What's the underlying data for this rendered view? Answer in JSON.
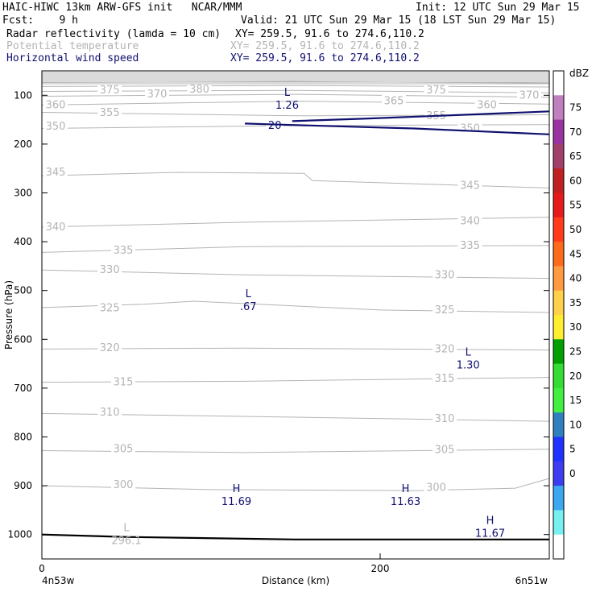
{
  "header": {
    "title_left": "HAIC-HIWC 13km ARW-GFS init   NCAR/MMM",
    "init": "Init: 12 UTC Sun 29 Mar 15",
    "fcst": "Fcst:    9 h",
    "valid": "Valid: 21 UTC Sun 29 Mar 15 (18 LST Sun 29 Mar 15)",
    "fields": [
      {
        "name": "Radar reflectivity (lamda = 10 cm)",
        "xy": "XY= 259.5, 91.6 to 274.6,110.2",
        "color": "#000000"
      },
      {
        "name": "Potential temperature",
        "xy": "XY= 259.5, 91.6 to 274.6,110.2",
        "color": "#b4b4b4"
      },
      {
        "name": "Horizontal wind speed",
        "xy": "XY= 259.5, 91.6 to 274.6,110.2",
        "color": "#101070"
      }
    ]
  },
  "chart_data": {
    "type": "line",
    "title": "",
    "xlabel": "Distance (km)",
    "ylabel": "Pressure (hPa)",
    "xlim": [
      0,
      300
    ],
    "ylim": [
      1050,
      50
    ],
    "xticks": [
      0,
      200
    ],
    "yticks": [
      100,
      200,
      300,
      400,
      500,
      600,
      700,
      800,
      900,
      1000
    ],
    "endpoints": {
      "left": "4n53w",
      "right": "6n51w"
    },
    "theta_contours": [
      {
        "level": 300,
        "points": [
          [
            0,
            900
          ],
          [
            100,
            908
          ],
          [
            220,
            910
          ],
          [
            280,
            905
          ],
          [
            300,
            885
          ]
        ],
        "labels": [
          [
            40,
            898
          ],
          [
            225,
            904
          ]
        ]
      },
      {
        "level": 305,
        "points": [
          [
            0,
            828
          ],
          [
            120,
            832
          ],
          [
            300,
            825
          ]
        ],
        "labels": [
          [
            40,
            825
          ],
          [
            230,
            826
          ]
        ]
      },
      {
        "level": 310,
        "points": [
          [
            0,
            752
          ],
          [
            120,
            758
          ],
          [
            300,
            768
          ]
        ],
        "labels": [
          [
            32,
            750
          ],
          [
            230,
            763
          ]
        ]
      },
      {
        "level": 315,
        "points": [
          [
            0,
            688
          ],
          [
            120,
            686
          ],
          [
            300,
            678
          ]
        ],
        "labels": [
          [
            40,
            688
          ],
          [
            230,
            680
          ]
        ]
      },
      {
        "level": 320,
        "points": [
          [
            0,
            620
          ],
          [
            120,
            618
          ],
          [
            300,
            622
          ]
        ],
        "labels": [
          [
            32,
            618
          ],
          [
            230,
            620
          ]
        ]
      },
      {
        "level": 325,
        "points": [
          [
            0,
            535
          ],
          [
            60,
            528
          ],
          [
            90,
            522
          ],
          [
            140,
            530
          ],
          [
            200,
            540
          ],
          [
            300,
            545
          ]
        ],
        "labels": [
          [
            32,
            536
          ],
          [
            230,
            540
          ]
        ]
      },
      {
        "level": 330,
        "points": [
          [
            0,
            458
          ],
          [
            120,
            468
          ],
          [
            300,
            475
          ]
        ],
        "labels": [
          [
            32,
            458
          ],
          [
            230,
            468
          ]
        ]
      },
      {
        "level": 335,
        "points": [
          [
            0,
            422
          ],
          [
            120,
            410
          ],
          [
            300,
            408
          ]
        ],
        "labels": [
          [
            40,
            418
          ],
          [
            245,
            408
          ]
        ]
      },
      {
        "level": 340,
        "points": [
          [
            0,
            370
          ],
          [
            120,
            360
          ],
          [
            300,
            350
          ]
        ],
        "labels": [
          [
            0,
            370
          ],
          [
            245,
            358
          ]
        ]
      },
      {
        "level": 345,
        "points": [
          [
            0,
            265
          ],
          [
            80,
            258
          ],
          [
            155,
            260
          ],
          [
            160,
            275
          ],
          [
            300,
            290
          ]
        ],
        "labels": [
          [
            0,
            258
          ],
          [
            245,
            285
          ]
        ]
      },
      {
        "level": 350,
        "points": [
          [
            0,
            168
          ],
          [
            150,
            162
          ],
          [
            300,
            160
          ]
        ],
        "labels": [
          [
            0,
            164
          ],
          [
            245,
            168
          ]
        ]
      },
      {
        "level": 355,
        "points": [
          [
            0,
            135
          ],
          [
            150,
            142
          ],
          [
            300,
            140
          ]
        ],
        "labels": [
          [
            32,
            136
          ],
          [
            225,
            142
          ]
        ]
      },
      {
        "level": 360,
        "points": [
          [
            0,
            120
          ],
          [
            150,
            112
          ],
          [
            300,
            118
          ]
        ],
        "labels": [
          [
            0,
            120
          ],
          [
            255,
            120
          ]
        ]
      },
      {
        "level": 365,
        "points": [
          [
            0,
            102
          ],
          [
            150,
            98
          ],
          [
            300,
            104
          ]
        ],
        "labels": [
          [
            200,
            112
          ]
        ]
      },
      {
        "level": 370,
        "points": [
          [
            0,
            92
          ],
          [
            150,
            90
          ],
          [
            300,
            95
          ]
        ],
        "labels": [
          [
            60,
            98
          ],
          [
            280,
            100
          ]
        ]
      },
      {
        "level": 375,
        "points": [
          [
            0,
            82
          ],
          [
            150,
            80
          ],
          [
            300,
            83
          ]
        ],
        "labels": [
          [
            32,
            90
          ],
          [
            225,
            90
          ]
        ]
      },
      {
        "level": 380,
        "points": [
          [
            0,
            74
          ],
          [
            150,
            72
          ],
          [
            300,
            75
          ]
        ],
        "labels": [
          [
            85,
            88
          ]
        ]
      }
    ],
    "wind_contours": [
      {
        "level": 20,
        "points": [
          [
            148,
            153
          ],
          [
            190,
            148
          ],
          [
            250,
            140
          ],
          [
            300,
            133
          ]
        ],
        "label_at": [
          132,
          162
        ]
      },
      {
        "level": 20,
        "points": [
          [
            120,
            158
          ],
          [
            140,
            160
          ],
          [
            220,
            168
          ],
          [
            300,
            180
          ]
        ],
        "label_at": null
      }
    ],
    "reflectivity_contour": {
      "points": [
        [
          0,
          1000
        ],
        [
          50,
          1005
        ],
        [
          150,
          1010
        ],
        [
          300,
          1010
        ]
      ]
    },
    "extrema": [
      {
        "type": "L",
        "value": "1.26",
        "x": 145,
        "p": 108,
        "field": "wind"
      },
      {
        "type": "L",
        "value": ".67",
        "x": 122,
        "p": 520,
        "field": "wind"
      },
      {
        "type": "L",
        "value": "1.30",
        "x": 252,
        "p": 640,
        "field": "wind"
      },
      {
        "type": "H",
        "value": "11.69",
        "x": 115,
        "p": 920,
        "field": "wind"
      },
      {
        "type": "H",
        "value": "11.63",
        "x": 215,
        "p": 920,
        "field": "wind"
      },
      {
        "type": "H",
        "value": "11.67",
        "x": 265,
        "p": 985,
        "field": "wind"
      },
      {
        "type": "L",
        "value": "296.1",
        "x": 50,
        "p": 1000,
        "field": "theta"
      }
    ]
  },
  "colorbar": {
    "unit": "dBZ",
    "labels": [
      "75",
      "70",
      "65",
      "60",
      "55",
      "50",
      "45",
      "40",
      "35",
      "30",
      "25",
      "20",
      "15",
      "10",
      "5",
      "0"
    ],
    "colors": [
      "#ffffff",
      "#c080c0",
      "#9933a0",
      "#a0406b",
      "#c02020",
      "#e61a1a",
      "#ff3b1a",
      "#ff6a1a",
      "#ff9a40",
      "#ffd04a",
      "#ffee30",
      "#00a000",
      "#33dd33",
      "#40f040",
      "#3080c0",
      "#1e32ff",
      "#3c3cf0",
      "#3ca8f0",
      "#78f0f0",
      "#ffffff"
    ]
  }
}
